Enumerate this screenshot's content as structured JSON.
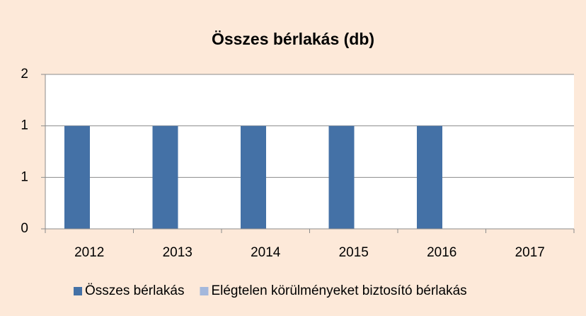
{
  "chart_data": {
    "type": "bar",
    "title": "Összes bérlakás (db)",
    "categories": [
      "2012",
      "2013",
      "2014",
      "2015",
      "2016",
      "2017"
    ],
    "series": [
      {
        "name": "Összes bérlakás",
        "color": "#4471a6",
        "values": [
          1,
          1,
          1,
          1,
          1,
          0
        ]
      },
      {
        "name": "Elégtelen körülményeket biztosító bérlakás",
        "color": "#a4b8dc",
        "values": [
          0,
          0,
          0,
          0,
          0,
          0
        ]
      }
    ],
    "ylim": [
      0,
      1.5
    ],
    "yticks": [
      0,
      {
        "value": 0.5,
        "label": "1"
      },
      1,
      {
        "value": 1.5,
        "label": "2"
      }
    ],
    "grid": true,
    "legend": "bottom"
  }
}
